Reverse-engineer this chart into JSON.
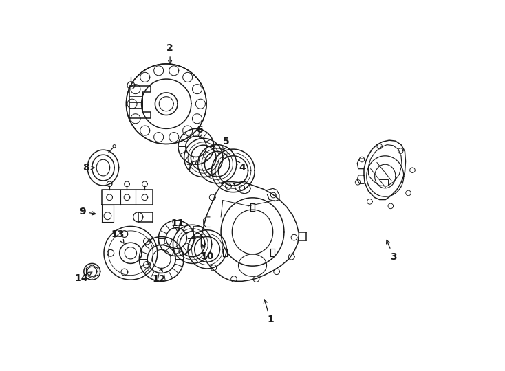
{
  "background_color": "#ffffff",
  "line_color": "#1a1a1a",
  "fig_width": 7.34,
  "fig_height": 5.4,
  "dpi": 100,
  "label_positions": {
    "1": [
      0.548,
      0.138,
      0.53,
      0.2
    ],
    "2": [
      0.278,
      0.87,
      0.278,
      0.82
    ],
    "3": [
      0.88,
      0.308,
      0.858,
      0.36
    ],
    "4": [
      0.472,
      0.548,
      0.455,
      0.568
    ],
    "5": [
      0.43,
      0.618,
      0.418,
      0.588
    ],
    "6": [
      0.358,
      0.65,
      0.358,
      0.62
    ],
    "7": [
      0.33,
      0.548,
      0.355,
      0.572
    ],
    "8": [
      0.052,
      0.548,
      0.082,
      0.548
    ],
    "9": [
      0.042,
      0.43,
      0.085,
      0.422
    ],
    "10": [
      0.378,
      0.31,
      0.362,
      0.348
    ],
    "11": [
      0.298,
      0.398,
      0.298,
      0.368
    ],
    "12": [
      0.248,
      0.248,
      0.258,
      0.285
    ],
    "13": [
      0.138,
      0.368,
      0.158,
      0.338
    ],
    "14": [
      0.04,
      0.25,
      0.07,
      0.268
    ]
  }
}
